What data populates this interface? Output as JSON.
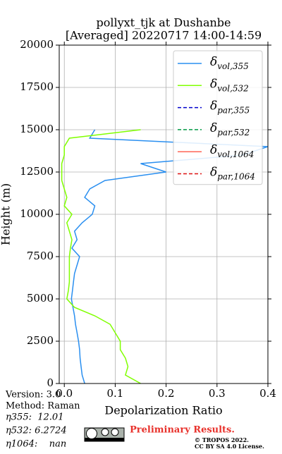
{
  "chart_data": {
    "type": "profile",
    "title": [
      "pollyxt_tjk at Dushanbe",
      "[Averaged] 20220717 14:00-14:59"
    ],
    "x_label": "Depolarization Ratio",
    "y_label": "Height (m)",
    "xlim": [
      -0.01,
      0.4
    ],
    "ylim": [
      0,
      20000
    ],
    "xticks": [
      {
        "value": 0,
        "label": "0.0"
      },
      0.1,
      0.2,
      0.3,
      0.4
    ],
    "yticks": [
      0,
      2500,
      5000,
      7500,
      10000,
      12500,
      15000,
      17500,
      20000
    ],
    "grid": true,
    "legend": "upper right",
    "heights": [
      0,
      500,
      1000,
      1500,
      2000,
      2500,
      3000,
      3500,
      4000,
      4500,
      5000,
      5500,
      6000,
      6500,
      7000,
      7500,
      8000,
      8500,
      9000,
      9500,
      10000,
      10500,
      11000,
      11500,
      12000,
      12500,
      13000,
      13500,
      14000,
      14500,
      15000,
      15500
    ],
    "series": [
      {
        "name": "δvol,355",
        "color": "#2a8ff0",
        "linestyle": "solid",
        "values": [
          0.04,
          0.035,
          0.033,
          0.031,
          0.03,
          0.028,
          0.025,
          0.022,
          0.02,
          0.017,
          0.014,
          0.016,
          0.018,
          0.02,
          0.025,
          0.03,
          0.015,
          0.025,
          0.02,
          0.035,
          0.055,
          0.06,
          0.04,
          0.05,
          0.08,
          0.2,
          0.15,
          0.35,
          0.4,
          0.05,
          0.06,
          null
        ]
      },
      {
        "name": "δvol,532",
        "color": "#80ff00",
        "linestyle": "solid",
        "values": [
          0.15,
          0.12,
          0.125,
          0.12,
          0.11,
          0.11,
          0.1,
          0.09,
          0.06,
          0.02,
          0.005,
          0.008,
          0.01,
          0.01,
          0.01,
          0.01,
          0.012,
          0.015,
          0.01,
          0.005,
          0.015,
          0,
          0.005,
          0,
          -0.005,
          -0.005,
          -0.005,
          0,
          0,
          0.01,
          0.15,
          null
        ]
      },
      {
        "name": "δpar,355",
        "color": "#0000cc",
        "linestyle": "dashed",
        "values": [
          null,
          null,
          null,
          null,
          null,
          null,
          null,
          null,
          null,
          null,
          null,
          null,
          null,
          null,
          null,
          null,
          null,
          null,
          null,
          null,
          null,
          null,
          null,
          null,
          null,
          null,
          null,
          null,
          null,
          null,
          null,
          null
        ]
      },
      {
        "name": "δpar,532",
        "color": "#009944",
        "linestyle": "dashed",
        "values": [
          null,
          null,
          null,
          null,
          null,
          null,
          null,
          null,
          null,
          null,
          null,
          null,
          null,
          null,
          null,
          null,
          null,
          null,
          null,
          null,
          null,
          null,
          null,
          null,
          null,
          null,
          null,
          null,
          null,
          null,
          null,
          null
        ]
      },
      {
        "name": "δvol,1064",
        "color": "#ff6655",
        "linestyle": "solid",
        "values": [
          null,
          null,
          null,
          null,
          null,
          null,
          null,
          null,
          null,
          null,
          null,
          null,
          null,
          null,
          null,
          null,
          null,
          null,
          null,
          null,
          null,
          null,
          null,
          null,
          null,
          null,
          null,
          null,
          null,
          null,
          null,
          null
        ]
      },
      {
        "name": "δpar,1064",
        "color": "#dd1111",
        "linestyle": "dashed",
        "values": [
          null,
          null,
          null,
          null,
          null,
          null,
          null,
          null,
          null,
          null,
          null,
          null,
          null,
          null,
          null,
          null,
          null,
          null,
          null,
          null,
          null,
          null,
          null,
          null,
          null,
          null,
          null,
          null,
          null,
          null,
          null,
          null
        ]
      }
    ],
    "info": [
      "Version: 3.0",
      "Method: Raman",
      "η355:  12.01",
      "η532: 6.2724",
      "η1064:    nan"
    ],
    "notice": "Preliminary Results.",
    "copyright": [
      "© TROPOS 2022.",
      "CC BY SA 4.0 License."
    ]
  }
}
